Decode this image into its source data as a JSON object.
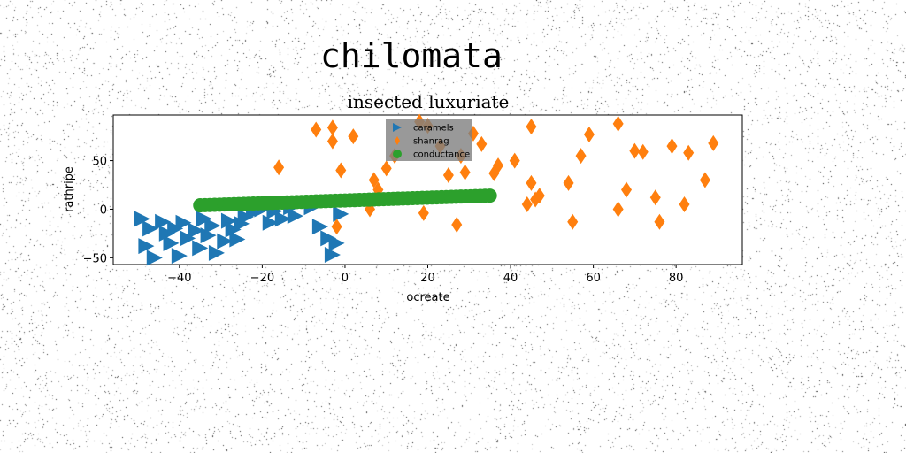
{
  "figure_title": "chilomata",
  "chart_data": {
    "type": "scatter",
    "title": "insected luxuriate",
    "xlabel": "ocreate",
    "ylabel": "rathripe",
    "xlim": [
      -56,
      96
    ],
    "ylim": [
      -57,
      97
    ],
    "xticks": [
      -40,
      -20,
      0,
      20,
      40,
      60,
      80
    ],
    "yticks": [
      -50,
      0,
      50
    ],
    "grid": false,
    "legend_position": "top-center",
    "series": [
      {
        "name": "caramels",
        "marker": "triangle-right",
        "color": "#1f77b4",
        "points": [
          [
            -49,
            -10
          ],
          [
            -47,
            -20
          ],
          [
            -48,
            -38
          ],
          [
            -46,
            -50
          ],
          [
            -44,
            -13
          ],
          [
            -43,
            -25
          ],
          [
            -42,
            -35
          ],
          [
            -41,
            -20
          ],
          [
            -40,
            -48
          ],
          [
            -39,
            -14
          ],
          [
            -38,
            -30
          ],
          [
            -36,
            -22
          ],
          [
            -35,
            -40
          ],
          [
            -34,
            -10
          ],
          [
            -33,
            -27
          ],
          [
            -32,
            -17
          ],
          [
            -31,
            -45
          ],
          [
            -29,
            -33
          ],
          [
            -28,
            -12
          ],
          [
            -27,
            -21
          ],
          [
            -26,
            -31
          ],
          [
            -25,
            -15
          ],
          [
            -24,
            -8
          ],
          [
            -22,
            -3
          ],
          [
            -20,
            0
          ],
          [
            -18,
            -14
          ],
          [
            -17,
            -2
          ],
          [
            -15,
            -10
          ],
          [
            -13,
            2
          ],
          [
            -12,
            -7
          ],
          [
            -8,
            2
          ],
          [
            -6,
            -18
          ],
          [
            -4,
            -30
          ],
          [
            -3,
            -47
          ],
          [
            -2,
            -35
          ],
          [
            -1,
            -5
          ]
        ]
      },
      {
        "name": "shanrag",
        "marker": "thin-diamond",
        "color": "#ff7f0e",
        "points": [
          [
            -16,
            43
          ],
          [
            -7,
            82
          ],
          [
            -3,
            84
          ],
          [
            -3,
            70
          ],
          [
            -1,
            40
          ],
          [
            2,
            75
          ],
          [
            6,
            0
          ],
          [
            7,
            30
          ],
          [
            8,
            20
          ],
          [
            10,
            42
          ],
          [
            12,
            55
          ],
          [
            18,
            90
          ],
          [
            19,
            -4
          ],
          [
            20,
            86
          ],
          [
            23,
            65
          ],
          [
            25,
            35
          ],
          [
            27,
            -16
          ],
          [
            28,
            55
          ],
          [
            29,
            38
          ],
          [
            31,
            78
          ],
          [
            33,
            67
          ],
          [
            36,
            37
          ],
          [
            37,
            45
          ],
          [
            41,
            50
          ],
          [
            44,
            5
          ],
          [
            45,
            85
          ],
          [
            45,
            27
          ],
          [
            46,
            10
          ],
          [
            47,
            14
          ],
          [
            54,
            27
          ],
          [
            55,
            -13
          ],
          [
            57,
            55
          ],
          [
            59,
            77
          ],
          [
            66,
            88
          ],
          [
            66,
            0
          ],
          [
            68,
            20
          ],
          [
            70,
            60
          ],
          [
            72,
            59
          ],
          [
            75,
            12
          ],
          [
            76,
            -13
          ],
          [
            79,
            65
          ],
          [
            82,
            5
          ],
          [
            83,
            58
          ],
          [
            87,
            30
          ],
          [
            89,
            68
          ],
          [
            -2,
            -18
          ]
        ]
      },
      {
        "name": "conductance",
        "marker": "circle",
        "color": "#2ca02c",
        "line": {
          "x_start": -35,
          "x_end": 35,
          "y_start": 4,
          "y_end": 14
        }
      }
    ]
  }
}
